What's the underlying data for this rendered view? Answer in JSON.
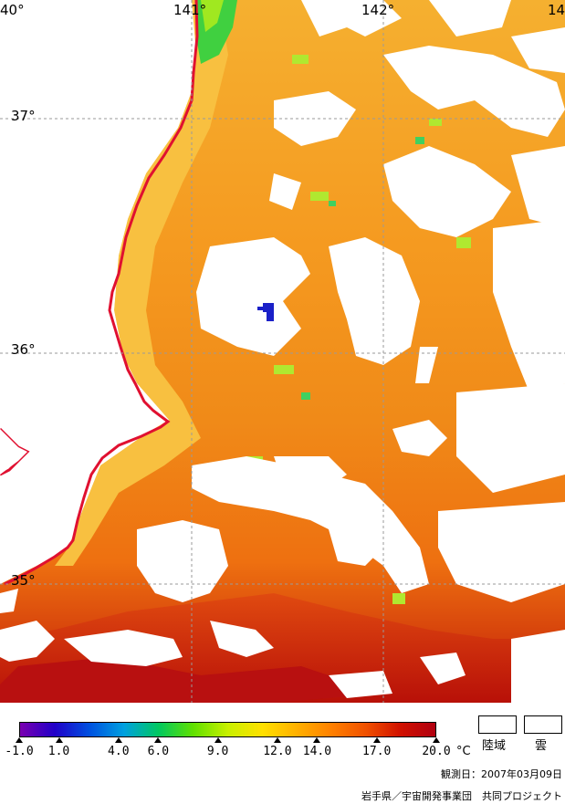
{
  "map": {
    "longitude_labels": [
      "40°",
      "141°",
      "142°",
      "14"
    ],
    "latitude_labels": [
      "37°",
      "36°",
      "35°"
    ],
    "colors": {
      "coastline": "#e01030",
      "cloud_land": "#ffffff",
      "grid": "#9a9a9a"
    }
  },
  "legend": {
    "gradient_colors": [
      "#7a00b0",
      "#2000c8",
      "#0050e0",
      "#00a0e0",
      "#00c860",
      "#60e000",
      "#c8f000",
      "#ffe000",
      "#ffb000",
      "#ff8000",
      "#f05000",
      "#d01000",
      "#b00010"
    ],
    "ticks": [
      {
        "label": "-1.0",
        "value": -1.0
      },
      {
        "label": "1.0",
        "value": 1.0
      },
      {
        "label": "4.0",
        "value": 4.0
      },
      {
        "label": "6.0",
        "value": 6.0
      },
      {
        "label": "9.0",
        "value": 9.0
      },
      {
        "label": "12.0",
        "value": 12.0
      },
      {
        "label": "14.0",
        "value": 14.0
      },
      {
        "label": "17.0",
        "value": 17.0
      },
      {
        "label": "20.0",
        "value": 20.0
      }
    ],
    "unit": "°C",
    "land_label": "陸域",
    "cloud_label": "雲"
  },
  "footer": {
    "observation_date": "観測日：2007年03月09日",
    "credit": "岩手県／宇宙開発事業団　共同プロジェクト"
  }
}
